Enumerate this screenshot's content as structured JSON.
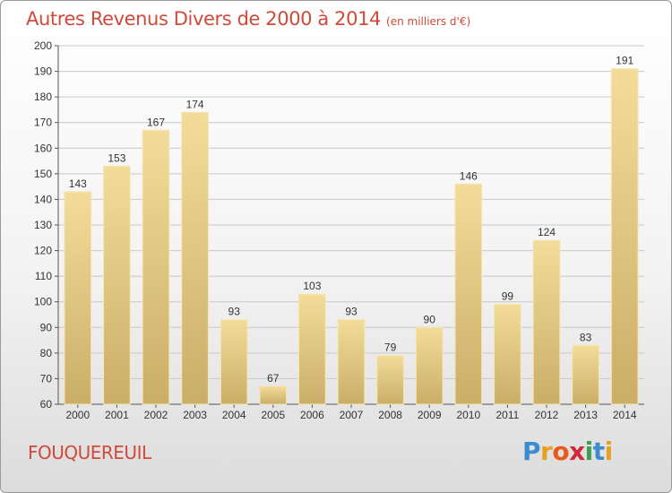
{
  "header": {
    "title": "Autres Revenus Divers de 2000 à 2014",
    "subtitle": "(en milliers d'€)"
  },
  "footer": {
    "commune": "FOUQUEREUIL",
    "logo_letters": [
      "P",
      "r",
      "o",
      "x",
      "i",
      "t",
      "i"
    ],
    "logo_colors": [
      "#3a8bd0",
      "#e8a020",
      "#e85a1a",
      "#d02a3a",
      "#3aa050",
      "#3a8bd0",
      "#e8a020"
    ]
  },
  "colors": {
    "bar_light": "#f3dc9a",
    "bar_dark": "#c9ae67",
    "bar_edge": "#f7e6b0",
    "text": "#333333",
    "accent": "#d04a3a"
  },
  "chart_data": {
    "type": "bar",
    "categories": [
      "2000",
      "2001",
      "2002",
      "2003",
      "2004",
      "2005",
      "2006",
      "2007",
      "2008",
      "2009",
      "2010",
      "2011",
      "2012",
      "2013",
      "2014"
    ],
    "values": [
      143,
      153,
      167,
      174,
      93,
      67,
      103,
      93,
      79,
      90,
      146,
      99,
      124,
      83,
      191
    ],
    "value_labels": [
      "143",
      "153",
      "167",
      "174",
      "93",
      "67",
      "103",
      "93",
      "79",
      "90",
      "146",
      "99",
      "124",
      "83",
      "191"
    ],
    "ylim": [
      60,
      200
    ],
    "yticks": [
      60,
      70,
      80,
      90,
      100,
      110,
      120,
      130,
      140,
      150,
      160,
      170,
      180,
      190,
      200
    ],
    "grid": true,
    "xlabel": "",
    "ylabel": ""
  }
}
